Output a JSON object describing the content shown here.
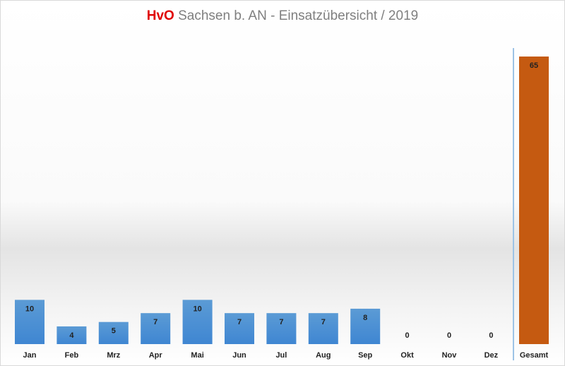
{
  "chart_data": {
    "type": "bar",
    "title_brand": "HvO",
    "title": "Sachsen b. AN -  Einsatzübersicht / 2019",
    "categories": [
      "Jan",
      "Feb",
      "Mrz",
      "Apr",
      "Mai",
      "Jun",
      "Jul",
      "Aug",
      "Sep",
      "Okt",
      "Nov",
      "Dez"
    ],
    "values": [
      10,
      4,
      5,
      7,
      10,
      7,
      7,
      7,
      8,
      0,
      0,
      0
    ],
    "total_label": "Gesamt",
    "total_value": 65,
    "ylim": [
      0,
      65
    ],
    "grid": false,
    "colors": {
      "month": "#3f86d2",
      "total": "#c55a11",
      "separator": "#9dc3e6"
    }
  }
}
